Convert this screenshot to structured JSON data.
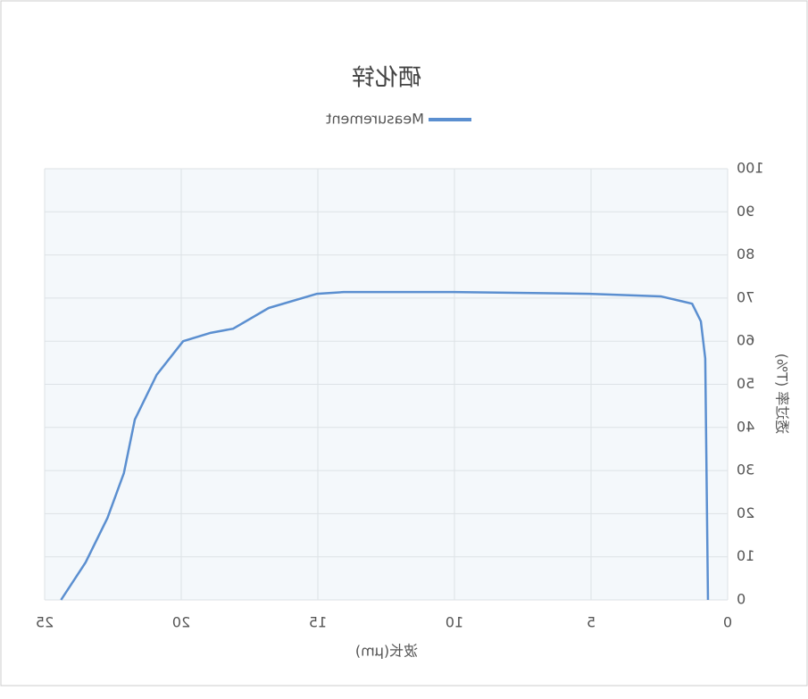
{
  "chart_data": {
    "type": "line",
    "title": "硒化锌",
    "x_label": "波长(μm)",
    "y_label": "透过率 (T%)",
    "x": [
      0.72,
      0.82,
      0.98,
      1.3,
      2.45,
      5.07,
      10.03,
      14.05,
      15.03,
      16.8,
      18.1,
      18.95,
      19.93,
      20.9,
      21.7,
      22.1,
      22.7,
      23.5,
      24.4
    ],
    "series": [
      {
        "name": "Measurement",
        "color": "#5b8fd0",
        "values": [
          0,
          56,
          64.6,
          68.7,
          70.4,
          71,
          71.4,
          71.4,
          71,
          67.7,
          62.9,
          61.9,
          60,
          52.2,
          41.8,
          29.4,
          19,
          8.7,
          0
        ]
      }
    ],
    "xlim": [
      0,
      25
    ],
    "xticks": [
      0,
      5,
      10,
      15,
      20,
      25
    ],
    "ylim": [
      0,
      100
    ],
    "yticks": [
      0,
      10,
      20,
      30,
      40,
      50,
      60,
      70,
      80,
      90,
      100
    ],
    "grid": true,
    "mirrored": true
  }
}
